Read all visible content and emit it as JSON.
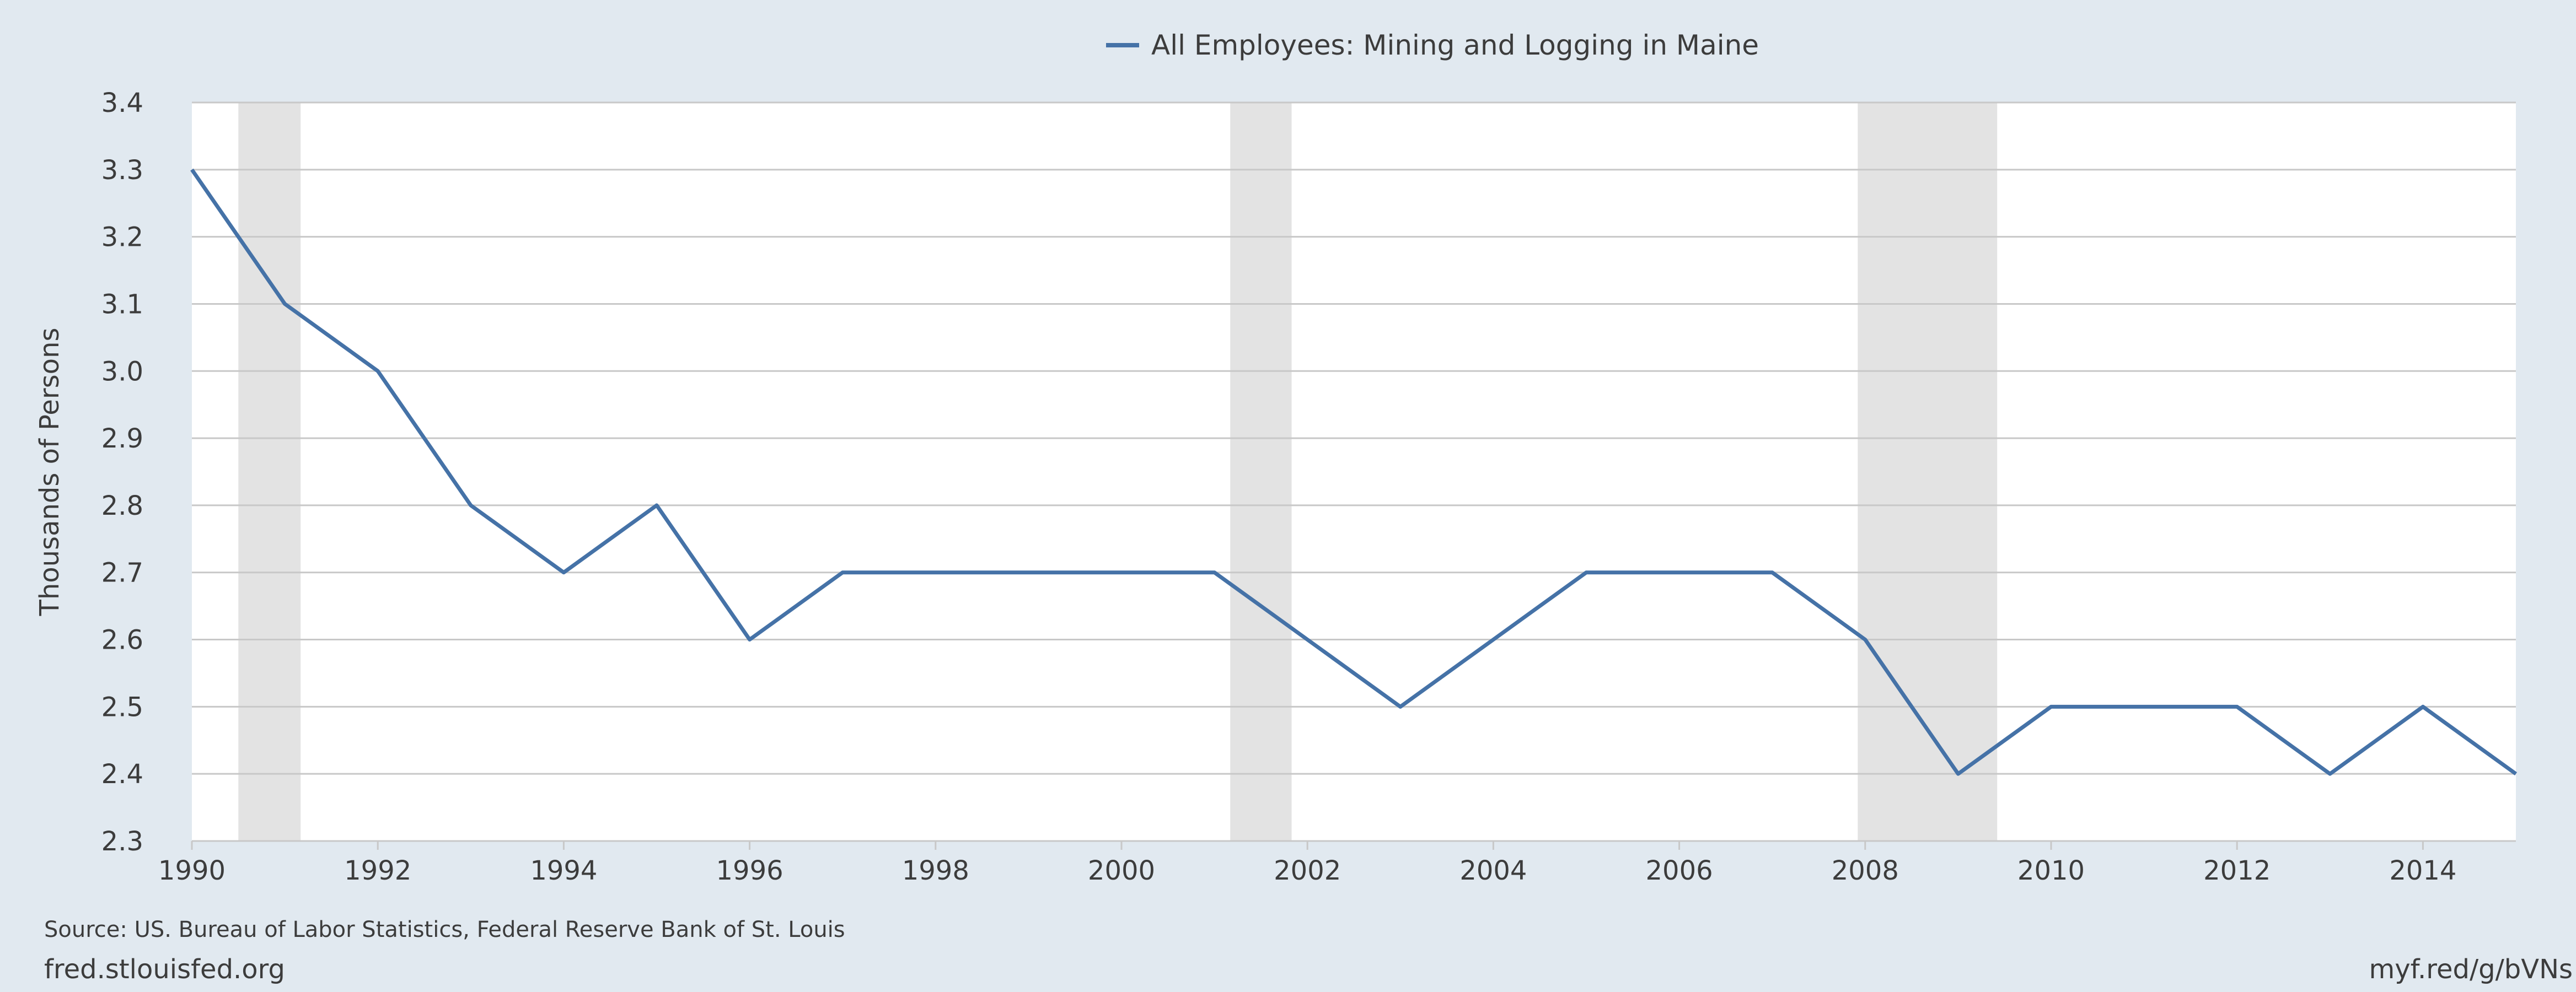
{
  "chart_data": {
    "type": "line",
    "title": "",
    "xlabel": "",
    "ylabel": "Thousands of Persons",
    "legend": {
      "label": "All Employees: Mining and Logging in Maine",
      "placement": "top-center"
    },
    "x": [
      1990,
      1991,
      1992,
      1993,
      1994,
      1995,
      1996,
      1997,
      1998,
      1999,
      2000,
      2001,
      2002,
      2003,
      2004,
      2005,
      2006,
      2007,
      2008,
      2009,
      2010,
      2011,
      2012,
      2013,
      2014,
      2015
    ],
    "series": [
      {
        "name": "All Employees: Mining and Logging in Maine",
        "color": "#4572a7",
        "values": [
          3.3,
          3.1,
          3.0,
          2.8,
          2.7,
          2.8,
          2.6,
          2.7,
          2.7,
          2.7,
          2.7,
          2.7,
          2.6,
          2.5,
          2.6,
          2.7,
          2.7,
          2.7,
          2.6,
          2.4,
          2.5,
          2.5,
          2.5,
          2.4,
          2.5,
          2.4
        ]
      }
    ],
    "xlim": [
      1990,
      2015
    ],
    "ylim": [
      2.3,
      3.4
    ],
    "x_ticks": [
      "1990",
      "1992",
      "1994",
      "1996",
      "1998",
      "2000",
      "2002",
      "2004",
      "2006",
      "2008",
      "2010",
      "2012",
      "2014"
    ],
    "y_ticks": [
      "2.3",
      "2.4",
      "2.5",
      "2.6",
      "2.7",
      "2.8",
      "2.9",
      "3.0",
      "3.1",
      "3.2",
      "3.3",
      "3.4"
    ],
    "recession_bands": [
      [
        1990.5,
        1991.17
      ],
      [
        2001.17,
        2001.83
      ],
      [
        2007.92,
        2009.42
      ]
    ],
    "grid": true,
    "colors": {
      "page_background": "#e1e9f0",
      "plot_background": "#ffffff",
      "gridline": "#c8c8c8",
      "recession": "#e3e3e3",
      "text": "#3c3c3c"
    }
  },
  "footer": {
    "source": "Source: US. Bureau of Labor Statistics, Federal Reserve Bank of St. Louis",
    "site": "fred.stlouisfed.org",
    "shortlink": "myf.red/g/bVNs"
  }
}
